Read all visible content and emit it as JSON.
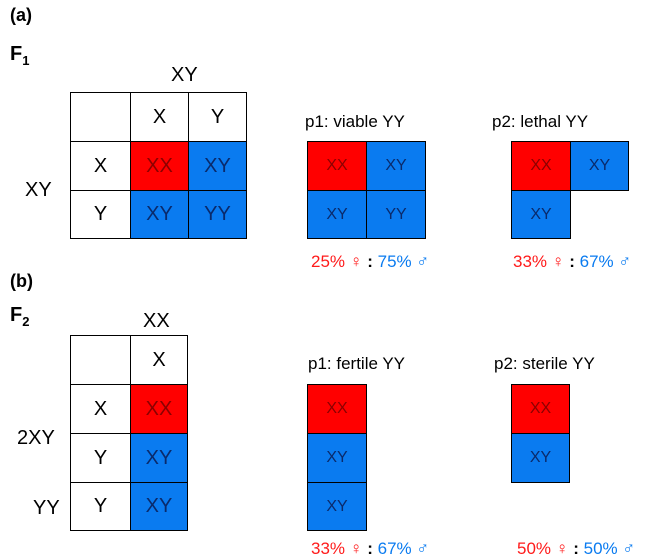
{
  "panel_a": {
    "tag": "(a)",
    "gen_letter": "F",
    "gen_sub": "1",
    "col_parent": "XY",
    "row_parent": "XY",
    "col_headers": [
      "X",
      "Y"
    ],
    "row_headers": [
      "X",
      "Y"
    ],
    "cells": [
      [
        "XX",
        "XY"
      ],
      [
        "XY",
        "YY"
      ]
    ],
    "p1": {
      "title": "p1: viable YY",
      "cells": [
        "XX",
        "XY",
        "XY",
        "YY"
      ],
      "female": "25% ♀",
      "male": "75% ♂"
    },
    "p2": {
      "title": "p2: lethal YY",
      "cells": [
        "XX",
        "XY",
        "XY"
      ],
      "female": "33% ♀",
      "male": "67% ♂"
    }
  },
  "panel_b": {
    "tag": "(b)",
    "gen_letter": "F",
    "gen_sub": "2",
    "col_parent": "XX",
    "row_parent_1": "2XY",
    "row_parent_2": "YY",
    "col_headers": [
      "X"
    ],
    "row_headers": [
      "X",
      "Y",
      "Y"
    ],
    "cells": [
      "XX",
      "XY",
      "XY"
    ],
    "p1": {
      "title": "p1: fertile YY",
      "cells": [
        "XX",
        "XY",
        "XY"
      ],
      "female": "33% ♀",
      "male": "67% ♂"
    },
    "p2": {
      "title": "p2: sterile YY",
      "cells": [
        "XX",
        "XY"
      ],
      "female": "50% ♀",
      "male": "50% ♂"
    }
  },
  "separator": ":",
  "colors": {
    "female_red": "#ff0000",
    "male_blue": "#0a7bf0",
    "female_text": "#ff1a1a",
    "male_text": "#0a7bf0"
  }
}
